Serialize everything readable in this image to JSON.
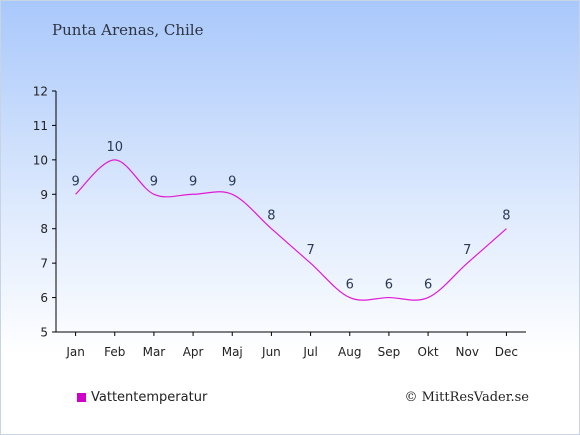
{
  "chart_data": {
    "type": "line",
    "title": "Punta Arenas, Chile",
    "categories": [
      "Jan",
      "Feb",
      "Mar",
      "Apr",
      "Maj",
      "Jun",
      "Jul",
      "Aug",
      "Sep",
      "Okt",
      "Nov",
      "Dec"
    ],
    "series": [
      {
        "name": "Vattentemperatur",
        "values": [
          9,
          10,
          9,
          9,
          9,
          8,
          7,
          6,
          6,
          6,
          7,
          8
        ]
      }
    ],
    "data_labels": [
      "9",
      "10",
      "9",
      "9",
      "9",
      "8",
      "7",
      "6",
      "6",
      "6",
      "7",
      "8"
    ],
    "y_ticks": [
      "5",
      "6",
      "7",
      "8",
      "9",
      "10",
      "11",
      "12"
    ],
    "ylim": [
      5,
      12
    ],
    "xlabel": "",
    "ylabel": "",
    "grid": false,
    "legend_position": "bottom-left",
    "colors": {
      "line": "#e01ad6",
      "legend_swatch": "#d000c8",
      "axis": "#000000",
      "label": "#2a3a55"
    }
  },
  "copyright": "© MittResVader.se"
}
